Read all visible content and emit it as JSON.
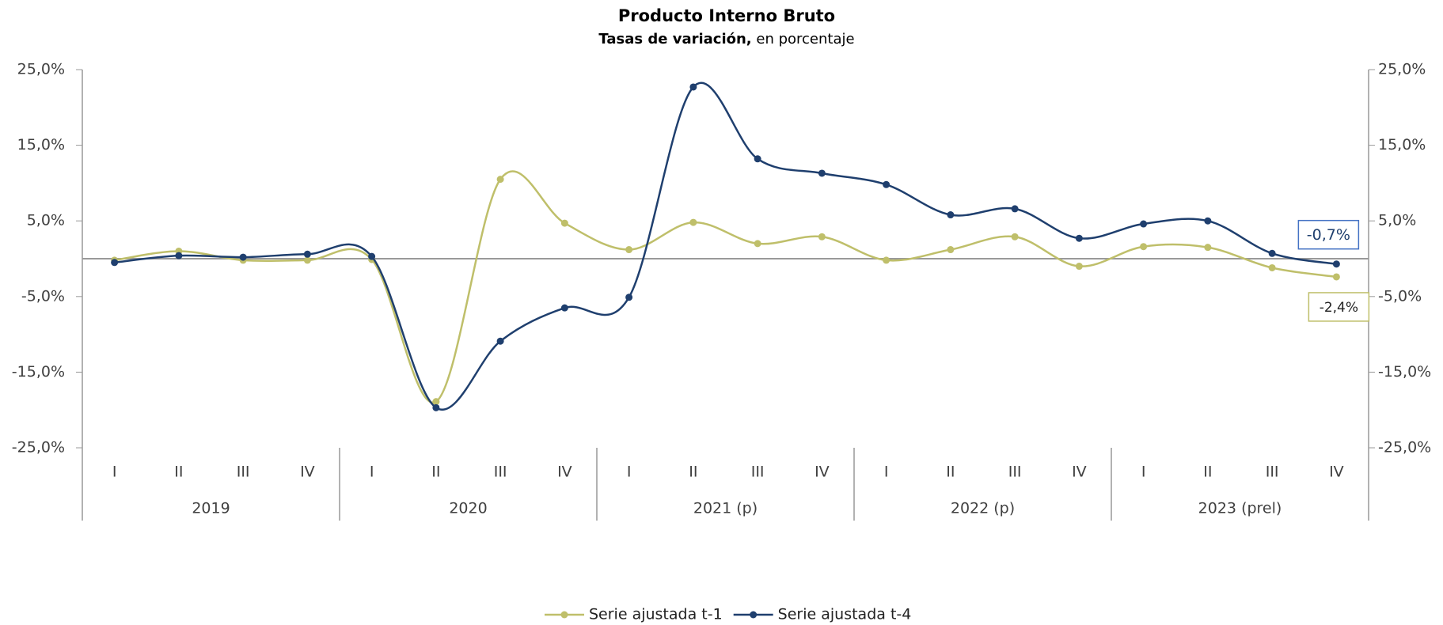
{
  "chart_data": {
    "type": "line",
    "title": "Producto Interno Bruto",
    "subtitle_bold": "Tasas de variación,",
    "subtitle": "en porcentaje",
    "categories": [
      "I",
      "II",
      "III",
      "IV",
      "I",
      "II",
      "III",
      "IV",
      "I",
      "II",
      "III",
      "IV",
      "I",
      "II",
      "III",
      "IV",
      "I",
      "II",
      "III",
      "IV"
    ],
    "groups": [
      "2019",
      "2020",
      "2021 (p)",
      "2022 (p)",
      "2023 (prel)"
    ],
    "series": [
      {
        "name": "Serie ajustada t-1",
        "color": "#bfbf6a",
        "values": [
          -0.2,
          1.0,
          -0.2,
          -0.2,
          -0.1,
          -18.9,
          10.5,
          4.7,
          1.2,
          4.8,
          2.0,
          2.9,
          -0.2,
          1.2,
          2.9,
          -1.0,
          1.6,
          1.5,
          -1.2,
          -2.4
        ],
        "value_labels": [
          null,
          null,
          null,
          null,
          null,
          null,
          null,
          null,
          null,
          null,
          null,
          null,
          null,
          null,
          null,
          null,
          null,
          null,
          null,
          "-2,4%"
        ]
      },
      {
        "name": "Serie ajustada t-4",
        "color": "#1f3f6e",
        "values": [
          -0.5,
          0.4,
          0.2,
          0.6,
          0.3,
          -19.7,
          -10.9,
          -6.5,
          -5.1,
          22.7,
          13.2,
          11.3,
          9.8,
          5.8,
          6.6,
          2.7,
          4.6,
          5.0,
          0.7,
          -0.7
        ],
        "value_labels": [
          null,
          null,
          null,
          null,
          null,
          null,
          null,
          null,
          null,
          null,
          null,
          null,
          null,
          null,
          null,
          null,
          null,
          null,
          null,
          "-0,7%"
        ]
      }
    ],
    "ylim": [
      -25,
      25
    ],
    "yticks": [
      {
        "value": -25,
        "label": "-25,0%"
      },
      {
        "value": -15,
        "label": "-15,0%"
      },
      {
        "value": -5,
        "label": "-5,0%"
      },
      {
        "value": 5,
        "label": "5,0%"
      },
      {
        "value": 15,
        "label": "15,0%"
      },
      {
        "value": 25,
        "label": "25,0%"
      }
    ],
    "y2lim": [
      -25,
      25
    ],
    "y2ticks": [
      {
        "value": -25,
        "label": "-25,0%"
      },
      {
        "value": -15,
        "label": "-15,0%"
      },
      {
        "value": -5,
        "label": "-5,0%"
      },
      {
        "value": 5,
        "label": "5,0%"
      },
      {
        "value": 15,
        "label": "15,0%"
      },
      {
        "value": 25,
        "label": "25,0%"
      }
    ],
    "legend": "bottom"
  }
}
